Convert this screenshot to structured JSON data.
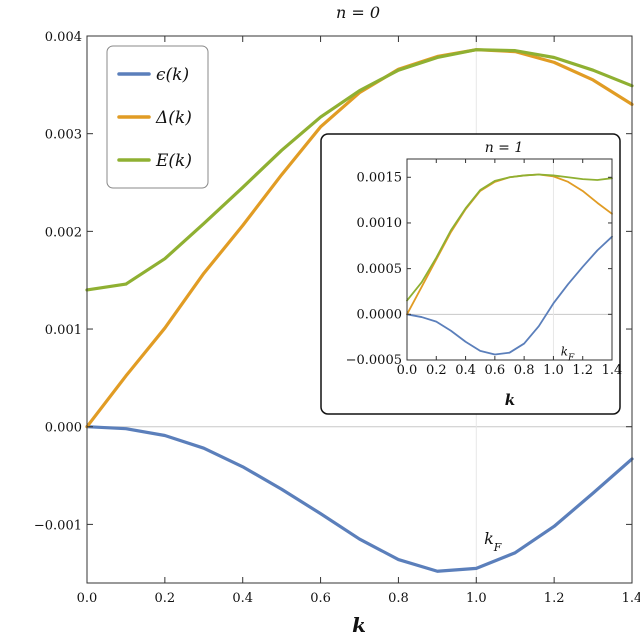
{
  "chart_data": [
    {
      "type": "line",
      "title": "n = 0",
      "xlabel": "k",
      "ylabel": "",
      "xlim": [
        0,
        1.4
      ],
      "ylim": [
        -0.0016,
        0.004
      ],
      "x_ticks": [
        "0.0",
        "0.2",
        "0.4",
        "0.6",
        "0.8",
        "1.0",
        "1.2",
        "1.4"
      ],
      "y_ticks": [
        "−0.001",
        "0.000",
        "0.001",
        "0.002",
        "0.003",
        "0.004"
      ],
      "x_tick_values": [
        0,
        0.2,
        0.4,
        0.6,
        0.8,
        1.0,
        1.2,
        1.4
      ],
      "y_tick_values": [
        -0.001,
        0,
        0.001,
        0.002,
        0.003,
        0.004
      ],
      "annotation": "k_F",
      "annotation_at": [
        1.02,
        -0.0012
      ],
      "reference_lines": {
        "y": 0,
        "x": 1.0
      },
      "legend_position": "top-left",
      "grid": false,
      "series": [
        {
          "name": "ϵ(k)",
          "color": "#5b7fbb",
          "x": [
            0,
            0.1,
            0.2,
            0.3,
            0.4,
            0.5,
            0.6,
            0.7,
            0.8,
            0.9,
            1.0,
            1.1,
            1.2,
            1.3,
            1.4
          ],
          "y": [
            0,
            -2e-05,
            -9e-05,
            -0.00022,
            -0.00041,
            -0.00064,
            -0.00089,
            -0.00115,
            -0.00136,
            -0.00148,
            -0.00145,
            -0.00129,
            -0.00102,
            -0.00068,
            -0.00033
          ]
        },
        {
          "name": "Δ(k)",
          "color": "#e19c24",
          "x": [
            0,
            0.1,
            0.2,
            0.3,
            0.4,
            0.5,
            0.6,
            0.7,
            0.8,
            0.9,
            1.0,
            1.1,
            1.2,
            1.3,
            1.4
          ],
          "y": [
            0,
            0.00052,
            0.00101,
            0.00157,
            0.00206,
            0.00258,
            0.00307,
            0.00342,
            0.00366,
            0.00379,
            0.00386,
            0.00384,
            0.00373,
            0.00355,
            0.0033
          ]
        },
        {
          "name": "E(k)",
          "color": "#8fb032",
          "x": [
            0,
            0.1,
            0.2,
            0.3,
            0.4,
            0.5,
            0.6,
            0.7,
            0.8,
            0.9,
            1.0,
            1.1,
            1.2,
            1.3,
            1.4
          ],
          "y": [
            0.0014,
            0.00146,
            0.00172,
            0.00208,
            0.00245,
            0.00283,
            0.00317,
            0.00344,
            0.00365,
            0.00378,
            0.00386,
            0.00385,
            0.00378,
            0.00365,
            0.00349
          ]
        }
      ]
    },
    {
      "type": "line",
      "title": "n = 1",
      "xlabel": "k",
      "ylabel": "",
      "xlim": [
        0,
        1.4
      ],
      "ylim": [
        -0.0005,
        0.0017
      ],
      "x_ticks": [
        "0.0",
        "0.2",
        "0.4",
        "0.6",
        "0.8",
        "1.0",
        "1.2",
        "1.4"
      ],
      "y_ticks": [
        "−0.0005",
        "0.0000",
        "0.0005",
        "0.0010",
        "0.0015"
      ],
      "x_tick_values": [
        0,
        0.2,
        0.4,
        0.6,
        0.8,
        1.0,
        1.2,
        1.4
      ],
      "y_tick_values": [
        -0.0005,
        0,
        0.0005,
        0.001,
        0.0015
      ],
      "annotation": "k_F",
      "annotation_at": [
        1.05,
        -0.00045
      ],
      "reference_lines": {
        "y": 0,
        "x": 1.0
      },
      "grid": false,
      "series": [
        {
          "name": "ϵ(k)",
          "color": "#5b7fbb",
          "x": [
            0,
            0.1,
            0.2,
            0.3,
            0.4,
            0.5,
            0.6,
            0.7,
            0.8,
            0.9,
            1.0,
            1.1,
            1.2,
            1.3,
            1.4
          ],
          "y": [
            0,
            -3e-05,
            -8e-05,
            -0.00018,
            -0.0003,
            -0.0004,
            -0.00044,
            -0.00042,
            -0.00032,
            -0.00013,
            0.00012,
            0.00033,
            0.00052,
            0.0007,
            0.00085
          ]
        },
        {
          "name": "Δ(k)",
          "color": "#e19c24",
          "x": [
            0,
            0.1,
            0.2,
            0.3,
            0.4,
            0.5,
            0.6,
            0.7,
            0.8,
            0.9,
            1.0,
            1.1,
            1.2,
            1.3,
            1.4
          ],
          "y": [
            0,
            0.0003,
            0.0006,
            0.0009,
            0.00115,
            0.00135,
            0.00145,
            0.0015,
            0.00152,
            0.00153,
            0.00151,
            0.00145,
            0.00135,
            0.00122,
            0.0011
          ]
        },
        {
          "name": "E(k)",
          "color": "#8fb032",
          "x": [
            0,
            0.1,
            0.2,
            0.3,
            0.4,
            0.5,
            0.6,
            0.7,
            0.8,
            0.9,
            1.0,
            1.1,
            1.2,
            1.3,
            1.4
          ],
          "y": [
            0.00015,
            0.00035,
            0.00062,
            0.00092,
            0.00116,
            0.00136,
            0.00146,
            0.0015,
            0.00152,
            0.00153,
            0.00152,
            0.0015,
            0.00148,
            0.00147,
            0.00149
          ]
        }
      ]
    }
  ]
}
